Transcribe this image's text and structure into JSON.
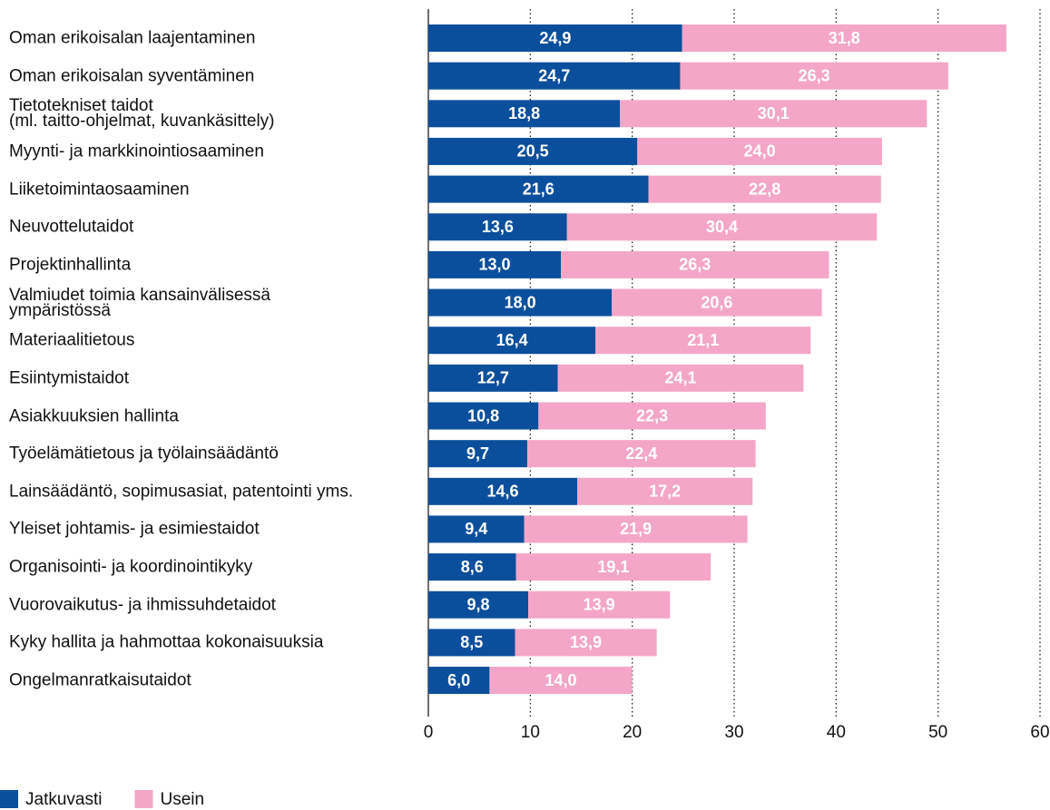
{
  "chart_data": {
    "type": "stacked-bar-horizontal",
    "categories": [
      "Oman erikoisalan laajentaminen",
      "Oman erikoisalan syventäminen",
      "Tietotekniset taidot\n(ml. taitto-ohjelmat, kuvankäsittely)",
      "Myynti- ja markkinointiosaaminen",
      "Liiketoimintaosaaminen",
      "Neuvottelutaidot",
      "Projektinhallinta",
      "Valmiudet toimia kansainvälisessä\nympäristössä",
      "Materiaalitietous",
      "Esiintymistaidot",
      "Asiakkuuksien hallinta",
      "Työelämätietous ja työlainsäädäntö",
      "Lainsäädäntö, sopimusasiat, patentointi yms.",
      "Yleiset johtamis- ja esimiestaidot",
      "Organisointi- ja koordinointikyky",
      "Vuorovaikutus- ja ihmissuhdetaidot",
      "Kyky hallita ja hahmottaa kokonaisuuksia",
      "Ongelmanratkaisutaidot"
    ],
    "series": [
      {
        "name": "Jatkuvasti",
        "color": "#0b4f9c",
        "values": [
          24.9,
          24.7,
          18.8,
          20.5,
          21.6,
          13.6,
          13.0,
          18.0,
          16.4,
          12.7,
          10.8,
          9.7,
          14.6,
          9.4,
          8.6,
          9.8,
          8.5,
          6.0
        ],
        "value_labels": [
          "24,9",
          "24,7",
          "18,8",
          "20,5",
          "21,6",
          "13,6",
          "13,0",
          "18,0",
          "16,4",
          "12,7",
          "10,8",
          "9,7",
          "14,6",
          "9,4",
          "8,6",
          "9,8",
          "8,5",
          "6,0"
        ]
      },
      {
        "name": "Usein",
        "color": "#f4a6c8",
        "values": [
          31.8,
          26.3,
          30.1,
          24.0,
          22.8,
          30.4,
          26.3,
          20.6,
          21.1,
          24.1,
          22.3,
          22.4,
          17.2,
          21.9,
          19.1,
          13.9,
          13.9,
          14.0
        ],
        "value_labels": [
          "31,8",
          "26,3",
          "30,1",
          "24,0",
          "22,8",
          "30,4",
          "26,3",
          "20,6",
          "21,1",
          "24,1",
          "22,3",
          "22,4",
          "17,2",
          "21,9",
          "19,1",
          "13,9",
          "13,9",
          "14,0"
        ]
      }
    ],
    "xlim": [
      0,
      60
    ],
    "xticks": [
      0,
      10,
      20,
      30,
      40,
      50,
      60
    ],
    "grid": true,
    "legend": "bottom-left"
  }
}
